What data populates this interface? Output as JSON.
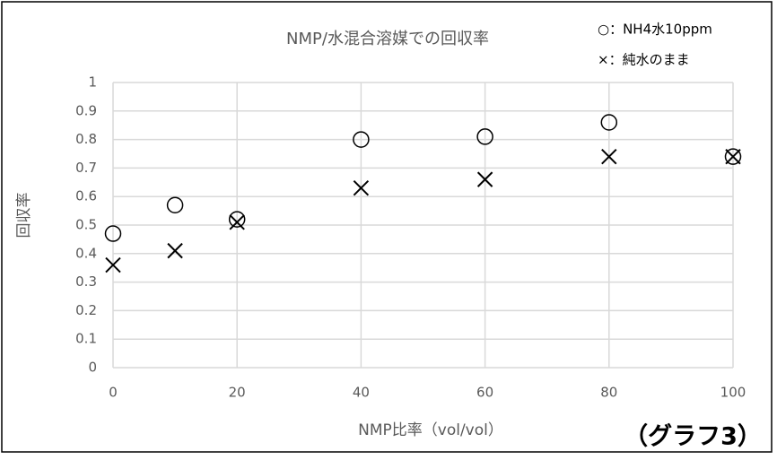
{
  "chart_data": {
    "type": "scatter",
    "title": "NMP/水混合溶媒での回収率",
    "x_label": "NMP比率（vol/vol）",
    "y_label": "回収率",
    "annotation": "（グラフ3）",
    "x": [
      0,
      10,
      20,
      40,
      60,
      80,
      100
    ],
    "series": [
      {
        "name": "○：NH4水10ppm",
        "color": "#000000",
        "marker": "circle",
        "values": [
          0.47,
          0.57,
          0.52,
          0.8,
          0.81,
          0.86,
          0.74
        ]
      },
      {
        "name": "×：純水のまま",
        "color": "#000000",
        "marker": "x",
        "values": [
          0.36,
          0.41,
          0.51,
          0.63,
          0.66,
          0.74,
          0.74
        ]
      }
    ],
    "xlim": [
      0,
      100
    ],
    "xticks": [
      0,
      20,
      40,
      60,
      80,
      100
    ],
    "ylim": [
      0,
      1
    ],
    "yticks": [
      0,
      0.1,
      0.2,
      0.3,
      0.4,
      0.5,
      0.6,
      0.7,
      0.8,
      0.9,
      1
    ],
    "grid": true
  }
}
